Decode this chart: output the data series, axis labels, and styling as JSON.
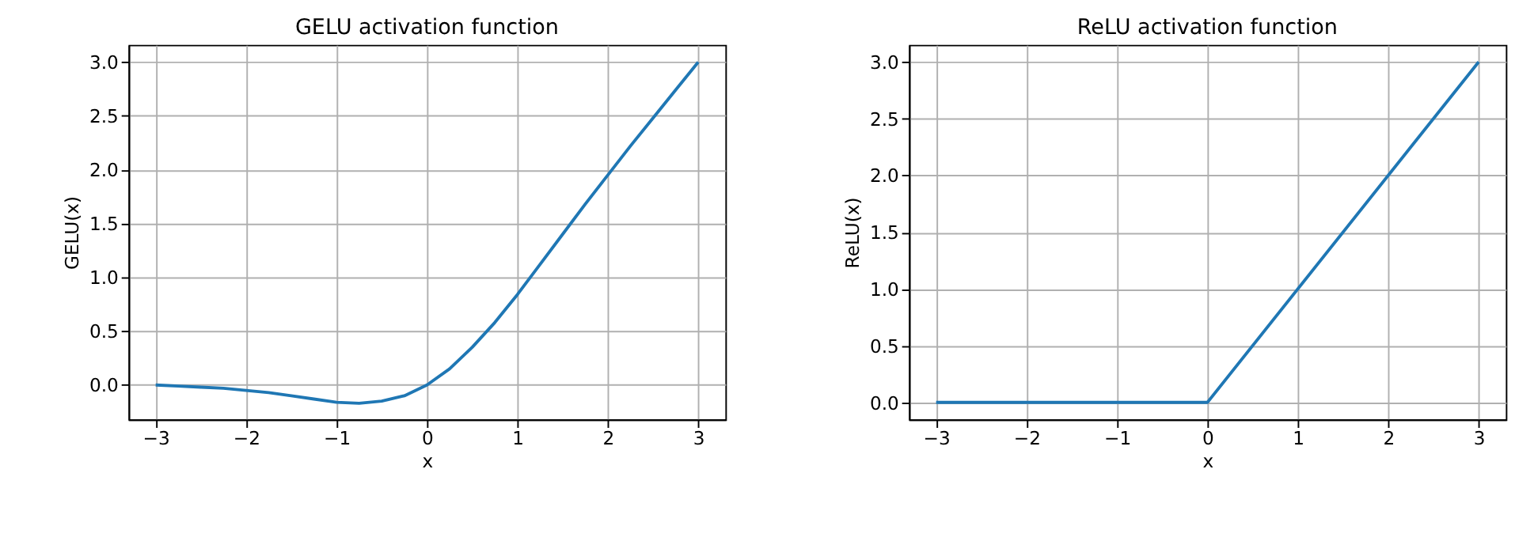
{
  "chart_data": [
    {
      "type": "line",
      "title": "GELU activation function",
      "xlabel": "x",
      "ylabel": "GELU(x)",
      "grid": true,
      "xlim": [
        -3.3,
        3.3
      ],
      "ylim": [
        -0.32,
        3.16
      ],
      "xticks": [
        -3,
        -2,
        -1,
        0,
        1,
        2,
        3
      ],
      "yticks": [
        {
          "value": 0,
          "label": "0.0"
        },
        0.5,
        {
          "value": 1,
          "label": "1.0"
        },
        1.5,
        {
          "value": 2,
          "label": "2.0"
        },
        2.5,
        {
          "value": 3,
          "label": "3.0"
        }
      ],
      "x": [
        -3,
        -2.75,
        -2.5,
        -2.25,
        -2,
        -1.75,
        -1.5,
        -1.25,
        -1,
        -0.75,
        -0.5,
        -0.25,
        0,
        0.25,
        0.5,
        0.75,
        1,
        1.25,
        1.5,
        1.75,
        2,
        2.25,
        2.5,
        2.75,
        3
      ],
      "series": [
        {
          "color": "#1f77b4",
          "values": [
            0,
            -0.01,
            -0.02,
            -0.03,
            -0.05,
            -0.07,
            -0.1,
            -0.13,
            -0.16,
            -0.17,
            -0.15,
            -0.1,
            0,
            0.15,
            0.35,
            0.58,
            0.84,
            1.12,
            1.4,
            1.68,
            1.95,
            2.22,
            2.48,
            2.74,
            3.0
          ]
        }
      ]
    },
    {
      "type": "line",
      "title": "ReLU activation function",
      "xlabel": "x",
      "ylabel": "ReLU(x)",
      "grid": true,
      "xlim": [
        -3.3,
        3.3
      ],
      "ylim": [
        -0.15,
        3.15
      ],
      "xticks": [
        -3,
        -2,
        -1,
        0,
        1,
        2,
        3
      ],
      "yticks": [
        {
          "value": 0,
          "label": "0.0"
        },
        0.5,
        {
          "value": 1,
          "label": "1.0"
        },
        1.5,
        {
          "value": 2,
          "label": "2.0"
        },
        2.5,
        {
          "value": 3,
          "label": "3.0"
        }
      ],
      "x": [
        -3,
        0,
        3
      ],
      "series": [
        {
          "color": "#1f77b4",
          "values": [
            0,
            0,
            3
          ]
        }
      ]
    }
  ]
}
